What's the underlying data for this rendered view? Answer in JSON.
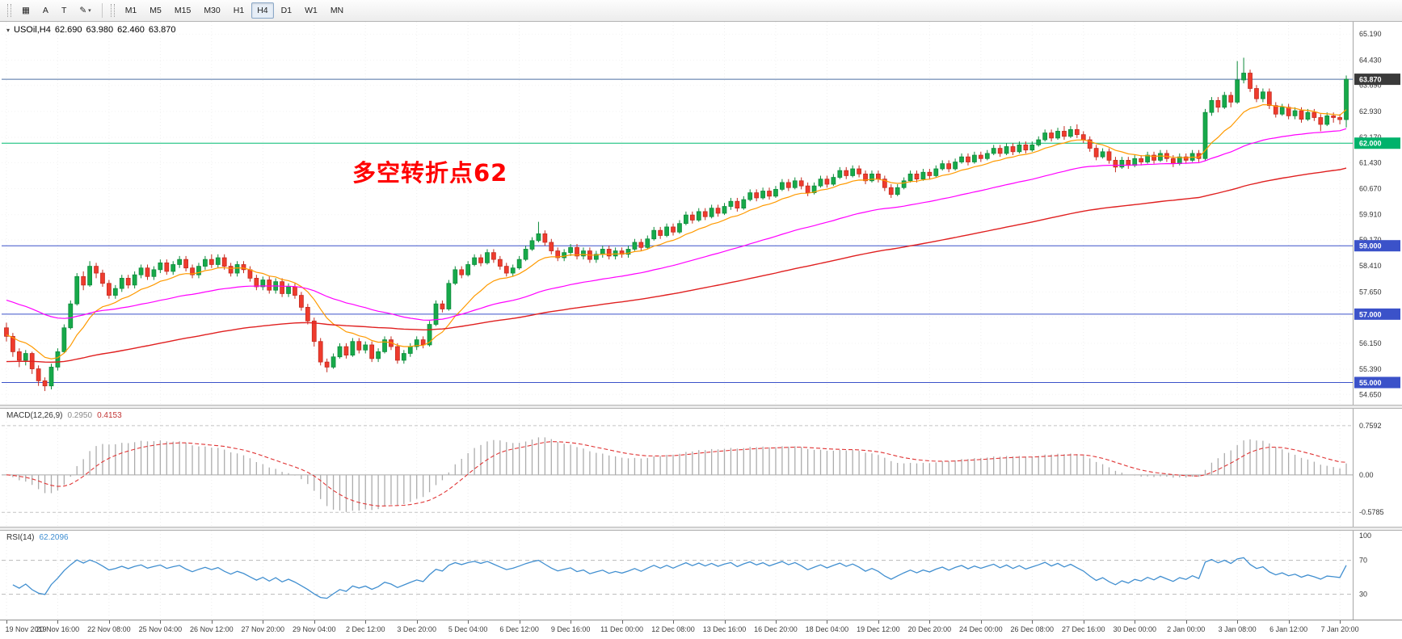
{
  "toolbar": {
    "tool_buttons": [
      {
        "name": "charts-grid",
        "icon": "▦"
      },
      {
        "name": "text-annotation",
        "label": "A"
      },
      {
        "name": "text-label",
        "label": "T"
      },
      {
        "name": "styles-dropdown",
        "icon": "✎",
        "caret": true
      }
    ],
    "timeframes": [
      "M1",
      "M5",
      "M15",
      "M30",
      "H1",
      "H4",
      "D1",
      "W1",
      "MN"
    ],
    "active_timeframe": "H4"
  },
  "chart_data": {
    "type": "candlestick",
    "symbol": "USOil,H4",
    "ohlc_display": {
      "open": "62.690",
      "high": "63.980",
      "low": "62.460",
      "close": "63.870"
    },
    "annotation": {
      "text": "多空转折点62",
      "color": "#ff0000"
    },
    "up_color": "#17a94a",
    "up_border": "#0c8a3a",
    "down_color": "#ef3b2d",
    "down_border": "#c22a1f",
    "grid_color": "#efefef",
    "price_ticks": [
      "65.190",
      "64.430",
      "63.690",
      "62.930",
      "62.170",
      "61.430",
      "60.670",
      "59.910",
      "59.170",
      "58.410",
      "57.650",
      "56.910",
      "56.150",
      "55.390",
      "54.650"
    ],
    "hlines": [
      {
        "value": 63.87,
        "label": "63.870",
        "line_color": "#4d6fa3",
        "box_color": "#3a3a3a",
        "name": "bid-price-line"
      },
      {
        "value": 62.0,
        "label": "62.000",
        "line_color": "#00bb70",
        "box_color": "#00b26b",
        "name": "hline-62"
      },
      {
        "value": 59.0,
        "label": "59.000",
        "line_color": "#3b52c9",
        "box_color": "#3b52c9",
        "name": "hline-59"
      },
      {
        "value": 57.0,
        "label": "57.000",
        "line_color": "#3b52c9",
        "box_color": "#3b52c9",
        "name": "hline-57"
      },
      {
        "value": 55.0,
        "label": "55.000",
        "line_color": "#3b52c9",
        "box_color": "#3b52c9",
        "name": "hline-55"
      }
    ],
    "moving_averages": [
      {
        "period": 12,
        "color": "#ff9a00",
        "seed": 56.4,
        "width": 1.2,
        "name": "ma-fast-orange"
      },
      {
        "period": 50,
        "color": "#ff00ff",
        "seed": 57.45,
        "width": 1.2,
        "name": "ma-mid-magenta"
      },
      {
        "period": 120,
        "color": "#e02020",
        "seed": 55.6,
        "width": 1.4,
        "name": "ma-slow-red"
      }
    ],
    "bars_per_label": 8,
    "time_labels": [
      "19 Nov 2019",
      "20 Nov 16:00",
      "22 Nov 08:00",
      "25 Nov 04:00",
      "26 Nov 12:00",
      "27 Nov 20:00",
      "29 Nov 04:00",
      "2 Dec 12:00",
      "3 Dec 20:00",
      "5 Dec 04:00",
      "6 Dec 12:00",
      "9 Dec 16:00",
      "11 Dec 00:00",
      "12 Dec 08:00",
      "13 Dec 16:00",
      "16 Dec 20:00",
      "18 Dec 04:00",
      "19 Dec 12:00",
      "20 Dec 20:00",
      "24 Dec 00:00",
      "26 Dec 08:00",
      "27 Dec 16:00",
      "30 Dec 00:00",
      "2 Jan 00:00",
      "3 Jan 08:00",
      "6 Jan 12:00",
      "7 Jan 20:00"
    ],
    "candles": [
      [
        56.6,
        56.75,
        56.2,
        56.35
      ],
      [
        56.35,
        56.45,
        55.75,
        55.9
      ],
      [
        55.9,
        56.0,
        55.45,
        55.65
      ],
      [
        55.65,
        55.95,
        55.5,
        55.85
      ],
      [
        55.85,
        55.9,
        55.25,
        55.4
      ],
      [
        55.4,
        55.5,
        54.9,
        55.05
      ],
      [
        55.05,
        55.15,
        54.75,
        54.9
      ],
      [
        54.9,
        55.55,
        54.8,
        55.45
      ],
      [
        55.45,
        56.0,
        55.35,
        55.9
      ],
      [
        55.9,
        56.7,
        55.85,
        56.6
      ],
      [
        56.6,
        57.4,
        56.55,
        57.3
      ],
      [
        57.3,
        58.2,
        57.25,
        58.1
      ],
      [
        58.1,
        58.25,
        57.7,
        57.85
      ],
      [
        57.85,
        58.55,
        57.8,
        58.4
      ],
      [
        58.4,
        58.5,
        58.05,
        58.2
      ],
      [
        58.2,
        58.3,
        57.8,
        57.9
      ],
      [
        57.9,
        58.0,
        57.45,
        57.55
      ],
      [
        57.55,
        57.85,
        57.45,
        57.75
      ],
      [
        57.75,
        58.15,
        57.65,
        58.05
      ],
      [
        58.05,
        58.15,
        57.75,
        57.85
      ],
      [
        57.85,
        58.25,
        57.75,
        58.15
      ],
      [
        58.15,
        58.45,
        58.05,
        58.35
      ],
      [
        58.35,
        58.45,
        58.0,
        58.1
      ],
      [
        58.1,
        58.4,
        58.0,
        58.3
      ],
      [
        58.3,
        58.6,
        58.2,
        58.5
      ],
      [
        58.5,
        58.6,
        58.15,
        58.25
      ],
      [
        58.25,
        58.55,
        58.15,
        58.45
      ],
      [
        58.45,
        58.7,
        58.35,
        58.6
      ],
      [
        58.6,
        58.7,
        58.25,
        58.35
      ],
      [
        58.35,
        58.45,
        58.05,
        58.15
      ],
      [
        58.15,
        58.5,
        58.05,
        58.4
      ],
      [
        58.4,
        58.7,
        58.3,
        58.6
      ],
      [
        58.6,
        58.75,
        58.35,
        58.45
      ],
      [
        58.45,
        58.75,
        58.35,
        58.65
      ],
      [
        58.65,
        58.75,
        58.3,
        58.4
      ],
      [
        58.4,
        58.5,
        58.1,
        58.2
      ],
      [
        58.2,
        58.55,
        58.1,
        58.45
      ],
      [
        58.45,
        58.55,
        58.2,
        58.3
      ],
      [
        58.3,
        58.4,
        57.95,
        58.05
      ],
      [
        58.05,
        58.15,
        57.7,
        57.8
      ],
      [
        57.8,
        58.1,
        57.7,
        58.0
      ],
      [
        58.0,
        58.1,
        57.6,
        57.7
      ],
      [
        57.7,
        58.05,
        57.6,
        57.95
      ],
      [
        57.95,
        58.05,
        57.5,
        57.6
      ],
      [
        57.6,
        57.9,
        57.5,
        57.8
      ],
      [
        57.8,
        57.9,
        57.45,
        57.55
      ],
      [
        57.55,
        57.65,
        57.1,
        57.2
      ],
      [
        57.2,
        57.3,
        56.7,
        56.8
      ],
      [
        56.8,
        56.9,
        56.05,
        56.2
      ],
      [
        56.2,
        56.3,
        55.5,
        55.6
      ],
      [
        55.6,
        55.7,
        55.3,
        55.45
      ],
      [
        55.45,
        55.85,
        55.4,
        55.75
      ],
      [
        55.75,
        56.15,
        55.7,
        56.05
      ],
      [
        56.05,
        56.15,
        55.7,
        55.8
      ],
      [
        55.8,
        56.3,
        55.75,
        56.2
      ],
      [
        56.2,
        56.3,
        55.85,
        55.95
      ],
      [
        55.95,
        56.2,
        55.85,
        56.1
      ],
      [
        56.1,
        56.2,
        55.6,
        55.7
      ],
      [
        55.7,
        56.0,
        55.6,
        55.9
      ],
      [
        55.9,
        56.35,
        55.85,
        56.25
      ],
      [
        56.25,
        56.35,
        55.95,
        56.05
      ],
      [
        56.05,
        56.15,
        55.55,
        55.65
      ],
      [
        55.65,
        55.95,
        55.55,
        55.85
      ],
      [
        55.85,
        56.15,
        55.75,
        56.05
      ],
      [
        56.05,
        56.35,
        55.95,
        56.25
      ],
      [
        56.25,
        56.35,
        56.0,
        56.1
      ],
      [
        56.1,
        56.8,
        56.05,
        56.7
      ],
      [
        56.7,
        57.4,
        56.65,
        57.3
      ],
      [
        57.3,
        57.4,
        57.05,
        57.15
      ],
      [
        57.15,
        58.0,
        57.1,
        57.9
      ],
      [
        57.9,
        58.4,
        57.85,
        58.3
      ],
      [
        58.3,
        58.4,
        58.05,
        58.15
      ],
      [
        58.15,
        58.55,
        58.1,
        58.45
      ],
      [
        58.45,
        58.75,
        58.4,
        58.65
      ],
      [
        58.65,
        58.75,
        58.4,
        58.5
      ],
      [
        58.5,
        58.9,
        58.45,
        58.8
      ],
      [
        58.8,
        58.9,
        58.5,
        58.6
      ],
      [
        58.6,
        58.7,
        58.3,
        58.4
      ],
      [
        58.4,
        58.5,
        58.1,
        58.2
      ],
      [
        58.2,
        58.45,
        58.1,
        58.35
      ],
      [
        58.35,
        58.7,
        58.3,
        58.6
      ],
      [
        58.6,
        59.0,
        58.55,
        58.9
      ],
      [
        58.9,
        59.25,
        58.85,
        59.15
      ],
      [
        59.15,
        59.7,
        59.1,
        59.35
      ],
      [
        59.35,
        59.45,
        59.0,
        59.1
      ],
      [
        59.1,
        59.2,
        58.75,
        58.85
      ],
      [
        58.85,
        58.95,
        58.55,
        58.65
      ],
      [
        58.65,
        58.9,
        58.55,
        58.8
      ],
      [
        58.8,
        59.05,
        58.7,
        58.95
      ],
      [
        58.95,
        59.05,
        58.6,
        58.7
      ],
      [
        58.7,
        58.95,
        58.6,
        58.85
      ],
      [
        58.85,
        58.95,
        58.5,
        58.6
      ],
      [
        58.6,
        58.85,
        58.5,
        58.75
      ],
      [
        58.75,
        59.0,
        58.65,
        58.9
      ],
      [
        58.9,
        59.0,
        58.6,
        58.7
      ],
      [
        58.7,
        58.95,
        58.6,
        58.85
      ],
      [
        58.85,
        58.95,
        58.65,
        58.75
      ],
      [
        58.75,
        59.0,
        58.65,
        58.9
      ],
      [
        58.9,
        59.2,
        58.85,
        59.1
      ],
      [
        59.1,
        59.2,
        58.85,
        58.95
      ],
      [
        58.95,
        59.3,
        58.9,
        59.2
      ],
      [
        59.2,
        59.55,
        59.15,
        59.45
      ],
      [
        59.45,
        59.55,
        59.2,
        59.3
      ],
      [
        59.3,
        59.65,
        59.25,
        59.55
      ],
      [
        59.55,
        59.65,
        59.3,
        59.4
      ],
      [
        59.4,
        59.75,
        59.35,
        59.65
      ],
      [
        59.65,
        60.0,
        59.6,
        59.9
      ],
      [
        59.9,
        60.0,
        59.65,
        59.75
      ],
      [
        59.75,
        60.1,
        59.7,
        60.0
      ],
      [
        60.0,
        60.1,
        59.75,
        59.85
      ],
      [
        59.85,
        60.2,
        59.8,
        60.1
      ],
      [
        60.1,
        60.2,
        59.85,
        59.95
      ],
      [
        59.95,
        60.25,
        59.9,
        60.15
      ],
      [
        60.15,
        60.4,
        60.05,
        60.3
      ],
      [
        60.3,
        60.4,
        60.0,
        60.1
      ],
      [
        60.1,
        60.45,
        60.05,
        60.35
      ],
      [
        60.35,
        60.65,
        60.3,
        60.55
      ],
      [
        60.55,
        60.65,
        60.3,
        60.4
      ],
      [
        60.4,
        60.7,
        60.35,
        60.6
      ],
      [
        60.6,
        60.7,
        60.35,
        60.45
      ],
      [
        60.45,
        60.75,
        60.4,
        60.65
      ],
      [
        60.65,
        60.95,
        60.6,
        60.85
      ],
      [
        60.85,
        60.95,
        60.6,
        60.7
      ],
      [
        60.7,
        61.0,
        60.65,
        60.9
      ],
      [
        60.9,
        61.0,
        60.65,
        60.75
      ],
      [
        60.75,
        60.85,
        60.45,
        60.55
      ],
      [
        60.55,
        60.85,
        60.5,
        60.75
      ],
      [
        60.75,
        61.05,
        60.7,
        60.95
      ],
      [
        60.95,
        61.05,
        60.7,
        60.8
      ],
      [
        60.8,
        61.1,
        60.75,
        61.0
      ],
      [
        61.0,
        61.3,
        60.95,
        61.2
      ],
      [
        61.2,
        61.3,
        60.95,
        61.05
      ],
      [
        61.05,
        61.35,
        61.0,
        61.25
      ],
      [
        61.25,
        61.35,
        61.0,
        61.1
      ],
      [
        61.1,
        61.2,
        60.8,
        60.9
      ],
      [
        60.9,
        61.2,
        60.85,
        61.1
      ],
      [
        61.1,
        61.2,
        60.85,
        60.95
      ],
      [
        60.95,
        61.05,
        60.6,
        60.7
      ],
      [
        60.7,
        60.8,
        60.4,
        60.5
      ],
      [
        60.5,
        60.8,
        60.45,
        60.7
      ],
      [
        60.7,
        61.0,
        60.65,
        60.9
      ],
      [
        60.9,
        61.2,
        60.85,
        61.1
      ],
      [
        61.1,
        61.2,
        60.85,
        60.95
      ],
      [
        60.95,
        61.25,
        60.9,
        61.15
      ],
      [
        61.15,
        61.25,
        60.95,
        61.05
      ],
      [
        61.05,
        61.35,
        61.0,
        61.25
      ],
      [
        61.25,
        61.5,
        61.2,
        61.4
      ],
      [
        61.4,
        61.5,
        61.15,
        61.25
      ],
      [
        61.25,
        61.55,
        61.2,
        61.45
      ],
      [
        61.45,
        61.7,
        61.4,
        61.6
      ],
      [
        61.6,
        61.7,
        61.35,
        61.45
      ],
      [
        61.45,
        61.75,
        61.4,
        61.65
      ],
      [
        61.65,
        61.75,
        61.45,
        61.55
      ],
      [
        61.55,
        61.8,
        61.5,
        61.7
      ],
      [
        61.7,
        61.95,
        61.65,
        61.85
      ],
      [
        61.85,
        61.95,
        61.6,
        61.7
      ],
      [
        61.7,
        62.0,
        61.65,
        61.9
      ],
      [
        61.9,
        62.0,
        61.65,
        61.75
      ],
      [
        61.75,
        62.05,
        61.7,
        61.95
      ],
      [
        61.95,
        62.05,
        61.7,
        61.8
      ],
      [
        61.8,
        62.05,
        61.75,
        61.95
      ],
      [
        61.95,
        62.2,
        61.9,
        62.1
      ],
      [
        62.1,
        62.4,
        62.05,
        62.3
      ],
      [
        62.3,
        62.4,
        62.05,
        62.15
      ],
      [
        62.15,
        62.45,
        62.1,
        62.35
      ],
      [
        62.35,
        62.5,
        62.1,
        62.2
      ],
      [
        62.2,
        62.5,
        62.15,
        62.4
      ],
      [
        62.4,
        62.55,
        62.15,
        62.25
      ],
      [
        62.25,
        62.35,
        62.0,
        62.1
      ],
      [
        62.1,
        62.2,
        61.75,
        61.85
      ],
      [
        61.85,
        61.95,
        61.5,
        61.6
      ],
      [
        61.6,
        61.85,
        61.55,
        61.75
      ],
      [
        61.75,
        61.85,
        61.4,
        61.5
      ],
      [
        61.5,
        61.6,
        61.15,
        61.3
      ],
      [
        61.3,
        61.6,
        61.25,
        61.5
      ],
      [
        61.5,
        61.6,
        61.25,
        61.35
      ],
      [
        61.35,
        61.65,
        61.3,
        61.55
      ],
      [
        61.55,
        61.65,
        61.35,
        61.45
      ],
      [
        61.45,
        61.75,
        61.4,
        61.65
      ],
      [
        61.65,
        61.75,
        61.4,
        61.5
      ],
      [
        61.5,
        61.8,
        61.45,
        61.7
      ],
      [
        61.7,
        61.8,
        61.45,
        61.55
      ],
      [
        61.55,
        61.65,
        61.3,
        61.4
      ],
      [
        61.4,
        61.7,
        61.35,
        61.6
      ],
      [
        61.6,
        61.7,
        61.4,
        61.5
      ],
      [
        61.5,
        61.8,
        61.45,
        61.7
      ],
      [
        61.7,
        61.8,
        61.45,
        61.55
      ],
      [
        61.55,
        63.0,
        61.5,
        62.9
      ],
      [
        62.9,
        63.35,
        62.8,
        63.25
      ],
      [
        63.25,
        63.35,
        62.9,
        63.05
      ],
      [
        63.05,
        63.5,
        63.0,
        63.4
      ],
      [
        63.4,
        63.5,
        63.05,
        63.2
      ],
      [
        63.2,
        64.4,
        63.15,
        63.85
      ],
      [
        63.85,
        64.5,
        63.75,
        64.05
      ],
      [
        64.05,
        64.15,
        63.5,
        63.6
      ],
      [
        63.6,
        63.7,
        63.2,
        63.3
      ],
      [
        63.3,
        63.6,
        63.2,
        63.5
      ],
      [
        63.5,
        63.6,
        63.0,
        63.1
      ],
      [
        63.1,
        63.2,
        62.75,
        62.85
      ],
      [
        62.85,
        63.15,
        62.8,
        63.05
      ],
      [
        63.05,
        63.15,
        62.7,
        62.8
      ],
      [
        62.8,
        63.05,
        62.7,
        62.95
      ],
      [
        62.95,
        63.05,
        62.6,
        62.7
      ],
      [
        62.7,
        63.0,
        62.65,
        62.9
      ],
      [
        62.9,
        63.0,
        62.65,
        62.75
      ],
      [
        62.75,
        62.85,
        62.35,
        62.55
      ],
      [
        62.55,
        62.9,
        62.5,
        62.8
      ],
      [
        62.8,
        62.9,
        62.6,
        62.75
      ],
      [
        62.75,
        62.85,
        62.55,
        62.69
      ],
      [
        62.69,
        63.98,
        62.46,
        63.87
      ]
    ],
    "indicators": {
      "macd": {
        "name": "MACD(12,26,9)",
        "value_main": "0.2950",
        "value_signal": "0.4153",
        "fast": 12,
        "slow": 26,
        "signal": 9,
        "axis_labels": [
          "0.7592",
          "0.00",
          "-0.5785"
        ],
        "levels": [
          0.7592,
          -0.5785
        ],
        "range": [
          -0.8,
          1.02
        ],
        "hist_color": "#acacac",
        "signal_color": "#e03535"
      },
      "rsi": {
        "name": "RSI(14)",
        "value": "62.2096",
        "period": 14,
        "axis_labels": [
          "100",
          "70",
          "30"
        ],
        "levels": [
          70,
          30
        ],
        "range": [
          0,
          105
        ],
        "line_color": "#418fd0",
        "level_color": "#b9b9b9"
      }
    }
  }
}
